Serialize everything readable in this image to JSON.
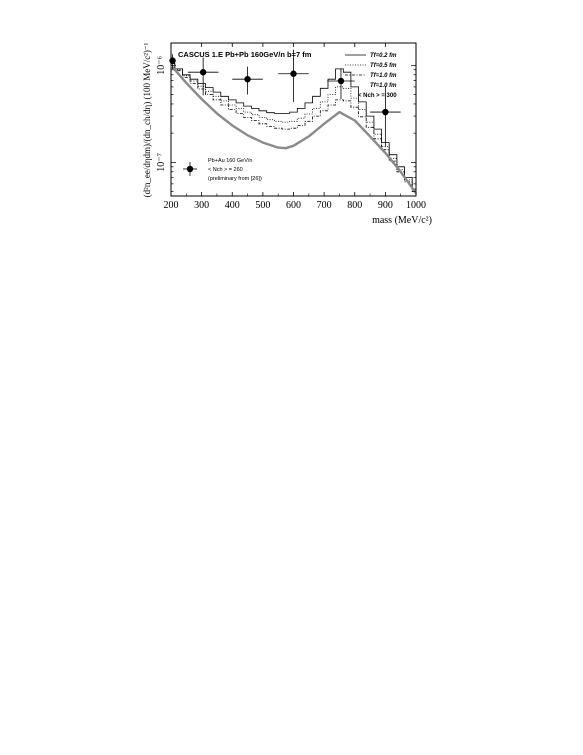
{
  "chart_data": {
    "type": "line",
    "title": "CASCUS 1.E Pb+Pb 160GeV/n  b=7 fm",
    "xlabel": "mass (MeV/c²)",
    "ylabel": "(d²n_ee/dηdm)/(dn_ch/dη) (100 MeV/c²)⁻¹",
    "xlim": [
      200,
      1000
    ],
    "ylim": [
      4.5e-08,
      1.7e-06
    ],
    "yscale": "log",
    "xticks": [
      200,
      300,
      400,
      500,
      600,
      700,
      800,
      900,
      1000
    ],
    "yticks": [
      {
        "value": 1e-07,
        "label": "10⁻⁷"
      },
      {
        "value": 1e-06,
        "label": "10⁻⁶"
      }
    ],
    "legend": {
      "position": "top-right",
      "entries": [
        "Tf=0.2 fm",
        "Tf=0.5 fm",
        "Tf=1.0 fm",
        "Tf=1.0 fm"
      ],
      "note": "< Nch > = 300"
    },
    "data_legend": {
      "position": "bottom-left",
      "lines": [
        "Pb+Au 160 GeV/n",
        "< Nch > = 260",
        "(preliminary from [26])"
      ]
    },
    "series": [
      {
        "name": "Tf=0.2 fm",
        "style": "solid-step",
        "x": [
          200,
          225,
          250,
          275,
          300,
          325,
          350,
          375,
          400,
          425,
          450,
          475,
          500,
          525,
          550,
          575,
          600,
          625,
          650,
          675,
          700,
          725,
          750,
          775,
          800,
          825,
          850,
          875,
          900,
          925,
          950,
          975,
          1000
        ],
        "y": [
          1.05e-06,
          9.2e-07,
          8e-07,
          7.2e-07,
          6.5e-07,
          5.9e-07,
          5.3e-07,
          4.8e-07,
          4.4e-07,
          4.1e-07,
          3.8e-07,
          3.6e-07,
          3.4e-07,
          3.25e-07,
          3.2e-07,
          3.2e-07,
          3.3e-07,
          3.6e-07,
          4.1e-07,
          4.8e-07,
          5.8e-07,
          7.2e-07,
          9.2e-07,
          8.5e-07,
          6e-07,
          4.2e-07,
          3e-07,
          2.2e-07,
          1.6e-07,
          1.2e-07,
          9e-08,
          7e-08,
          5.3e-08
        ]
      },
      {
        "name": "Tf=0.5 fm",
        "style": "dotted-step",
        "x": [
          200,
          225,
          250,
          275,
          300,
          325,
          350,
          375,
          400,
          425,
          450,
          475,
          500,
          525,
          550,
          575,
          600,
          625,
          650,
          675,
          700,
          725,
          750,
          775,
          800,
          825,
          850,
          875,
          900,
          925,
          950,
          975,
          1000
        ],
        "y": [
          1.05e-06,
          9e-07,
          7.8e-07,
          6.9e-07,
          6.1e-07,
          5.4e-07,
          4.8e-07,
          4.3e-07,
          3.9e-07,
          3.6e-07,
          3.3e-07,
          3.1e-07,
          2.9e-07,
          2.75e-07,
          2.65e-07,
          2.6e-07,
          2.65e-07,
          2.85e-07,
          3.15e-07,
          3.6e-07,
          4.2e-07,
          5e-07,
          6e-07,
          5.8e-07,
          4.6e-07,
          3.5e-07,
          2.6e-07,
          1.95e-07,
          1.45e-07,
          1.1e-07,
          8.4e-08,
          6.6e-08,
          5.1e-08
        ]
      },
      {
        "name": "Tf=1.0 fm",
        "style": "dashdot-step",
        "x": [
          200,
          225,
          250,
          275,
          300,
          325,
          350,
          375,
          400,
          425,
          450,
          475,
          500,
          525,
          550,
          575,
          600,
          625,
          650,
          675,
          700,
          725,
          750,
          775,
          800,
          825,
          850,
          875,
          900,
          925,
          950,
          975,
          1000
        ],
        "y": [
          1.05e-06,
          8.8e-07,
          7.5e-07,
          6.5e-07,
          5.7e-07,
          5e-07,
          4.4e-07,
          3.9e-07,
          3.5e-07,
          3.2e-07,
          2.9e-07,
          2.7e-07,
          2.5e-07,
          2.35e-07,
          2.25e-07,
          2.2e-07,
          2.25e-07,
          2.4e-07,
          2.65e-07,
          3e-07,
          3.4e-07,
          3.9e-07,
          4.4e-07,
          4.3e-07,
          3.7e-07,
          2.95e-07,
          2.3e-07,
          1.75e-07,
          1.35e-07,
          1.03e-07,
          8e-08,
          6.3e-08,
          5e-08
        ]
      },
      {
        "name": "Tf=1.0 fm",
        "style": "thick-gray",
        "x": [
          200,
          250,
          300,
          350,
          400,
          450,
          500,
          550,
          575,
          600,
          650,
          700,
          750,
          800,
          850,
          900,
          950,
          1000
        ],
        "y": [
          1e-06,
          6.6e-07,
          4.5e-07,
          3.2e-07,
          2.4e-07,
          1.9e-07,
          1.6e-07,
          1.42e-07,
          1.4e-07,
          1.48e-07,
          1.85e-07,
          2.5e-07,
          3.3e-07,
          2.7e-07,
          1.85e-07,
          1.25e-07,
          8e-08,
          4.8e-08
        ]
      }
    ],
    "data_points": {
      "name": "Pb+Au 160 GeV/n",
      "points": [
        {
          "x": 205,
          "y": 1.12e-06,
          "xerr": 10,
          "ylo": 9.2e-07,
          "yhi": 1.3e-06
        },
        {
          "x": 305,
          "y": 8.5e-07,
          "xerr": 50,
          "ylo": 4.9e-07,
          "yhi": 1.2e-06
        },
        {
          "x": 450,
          "y": 7.2e-07,
          "xerr": 50,
          "ylo": 5e-07,
          "yhi": 9.7e-07
        },
        {
          "x": 600,
          "y": 8.2e-07,
          "xerr": 50,
          "ylo": 4.2e-07,
          "yhi": 1.45e-06
        },
        {
          "x": 755,
          "y": 6.9e-07,
          "xerr": 45,
          "ylo": 4.5e-07,
          "yhi": 9.3e-07
        },
        {
          "x": 900,
          "y": 3.3e-07,
          "xerr": 50,
          "ylo": 1.45e-07,
          "yhi": 6.1e-07
        }
      ]
    }
  }
}
